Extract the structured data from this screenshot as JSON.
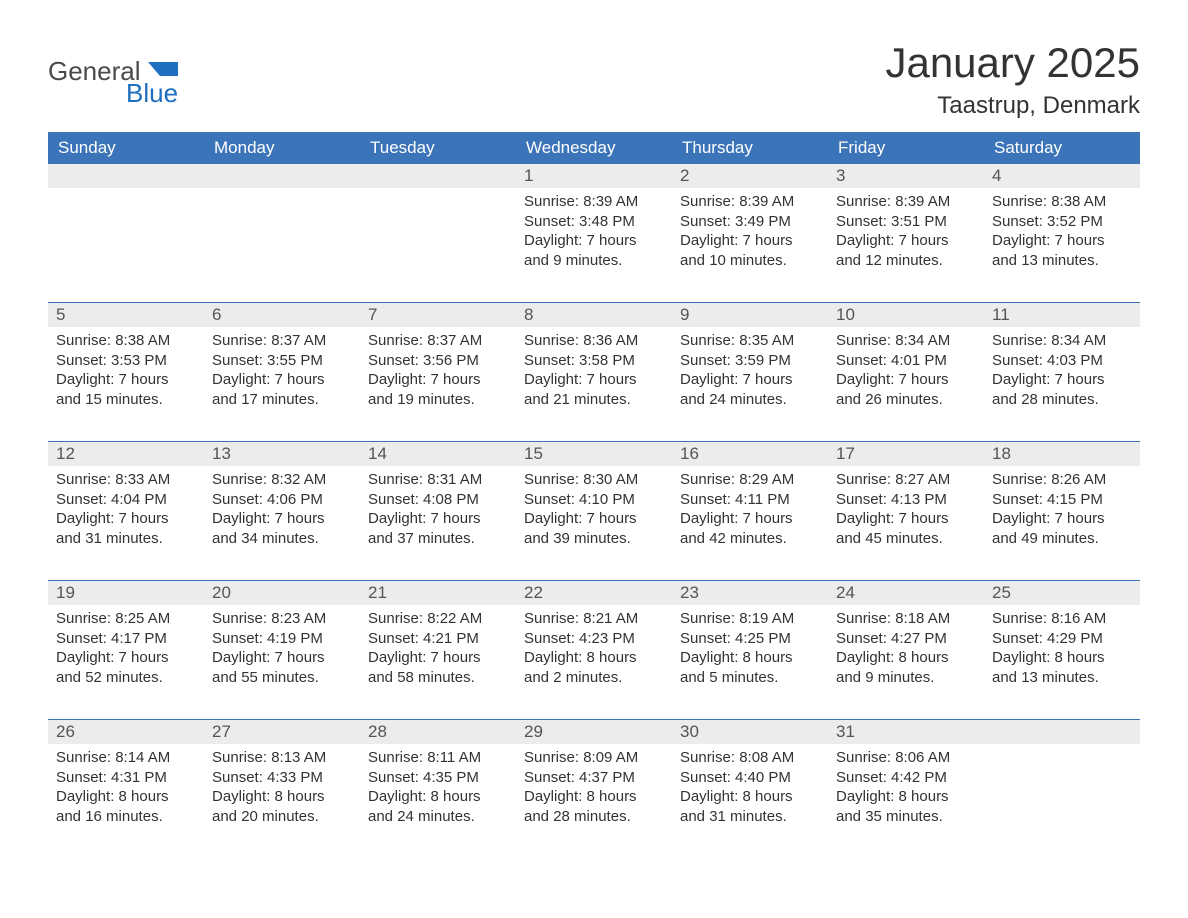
{
  "brand": {
    "word1": "General",
    "word2": "Blue",
    "word1_color": "#4a4a4a",
    "word2_color": "#1e6fbf",
    "flag_color": "#1e6fbf"
  },
  "title": "January 2025",
  "location": "Taastrup, Denmark",
  "colors": {
    "header_bg": "#3b74b9",
    "header_text": "#ffffff",
    "date_bar_bg": "#ececec",
    "date_bar_text": "#555555",
    "body_text": "#333333",
    "week_border": "#3b74b9",
    "page_bg": "#ffffff"
  },
  "day_names": [
    "Sunday",
    "Monday",
    "Tuesday",
    "Wednesday",
    "Thursday",
    "Friday",
    "Saturday"
  ],
  "weeks": [
    [
      null,
      null,
      null,
      {
        "date": "1",
        "sunrise": "Sunrise: 8:39 AM",
        "sunset": "Sunset: 3:48 PM",
        "daylight1": "Daylight: 7 hours",
        "daylight2": "and 9 minutes."
      },
      {
        "date": "2",
        "sunrise": "Sunrise: 8:39 AM",
        "sunset": "Sunset: 3:49 PM",
        "daylight1": "Daylight: 7 hours",
        "daylight2": "and 10 minutes."
      },
      {
        "date": "3",
        "sunrise": "Sunrise: 8:39 AM",
        "sunset": "Sunset: 3:51 PM",
        "daylight1": "Daylight: 7 hours",
        "daylight2": "and 12 minutes."
      },
      {
        "date": "4",
        "sunrise": "Sunrise: 8:38 AM",
        "sunset": "Sunset: 3:52 PM",
        "daylight1": "Daylight: 7 hours",
        "daylight2": "and 13 minutes."
      }
    ],
    [
      {
        "date": "5",
        "sunrise": "Sunrise: 8:38 AM",
        "sunset": "Sunset: 3:53 PM",
        "daylight1": "Daylight: 7 hours",
        "daylight2": "and 15 minutes."
      },
      {
        "date": "6",
        "sunrise": "Sunrise: 8:37 AM",
        "sunset": "Sunset: 3:55 PM",
        "daylight1": "Daylight: 7 hours",
        "daylight2": "and 17 minutes."
      },
      {
        "date": "7",
        "sunrise": "Sunrise: 8:37 AM",
        "sunset": "Sunset: 3:56 PM",
        "daylight1": "Daylight: 7 hours",
        "daylight2": "and 19 minutes."
      },
      {
        "date": "8",
        "sunrise": "Sunrise: 8:36 AM",
        "sunset": "Sunset: 3:58 PM",
        "daylight1": "Daylight: 7 hours",
        "daylight2": "and 21 minutes."
      },
      {
        "date": "9",
        "sunrise": "Sunrise: 8:35 AM",
        "sunset": "Sunset: 3:59 PM",
        "daylight1": "Daylight: 7 hours",
        "daylight2": "and 24 minutes."
      },
      {
        "date": "10",
        "sunrise": "Sunrise: 8:34 AM",
        "sunset": "Sunset: 4:01 PM",
        "daylight1": "Daylight: 7 hours",
        "daylight2": "and 26 minutes."
      },
      {
        "date": "11",
        "sunrise": "Sunrise: 8:34 AM",
        "sunset": "Sunset: 4:03 PM",
        "daylight1": "Daylight: 7 hours",
        "daylight2": "and 28 minutes."
      }
    ],
    [
      {
        "date": "12",
        "sunrise": "Sunrise: 8:33 AM",
        "sunset": "Sunset: 4:04 PM",
        "daylight1": "Daylight: 7 hours",
        "daylight2": "and 31 minutes."
      },
      {
        "date": "13",
        "sunrise": "Sunrise: 8:32 AM",
        "sunset": "Sunset: 4:06 PM",
        "daylight1": "Daylight: 7 hours",
        "daylight2": "and 34 minutes."
      },
      {
        "date": "14",
        "sunrise": "Sunrise: 8:31 AM",
        "sunset": "Sunset: 4:08 PM",
        "daylight1": "Daylight: 7 hours",
        "daylight2": "and 37 minutes."
      },
      {
        "date": "15",
        "sunrise": "Sunrise: 8:30 AM",
        "sunset": "Sunset: 4:10 PM",
        "daylight1": "Daylight: 7 hours",
        "daylight2": "and 39 minutes."
      },
      {
        "date": "16",
        "sunrise": "Sunrise: 8:29 AM",
        "sunset": "Sunset: 4:11 PM",
        "daylight1": "Daylight: 7 hours",
        "daylight2": "and 42 minutes."
      },
      {
        "date": "17",
        "sunrise": "Sunrise: 8:27 AM",
        "sunset": "Sunset: 4:13 PM",
        "daylight1": "Daylight: 7 hours",
        "daylight2": "and 45 minutes."
      },
      {
        "date": "18",
        "sunrise": "Sunrise: 8:26 AM",
        "sunset": "Sunset: 4:15 PM",
        "daylight1": "Daylight: 7 hours",
        "daylight2": "and 49 minutes."
      }
    ],
    [
      {
        "date": "19",
        "sunrise": "Sunrise: 8:25 AM",
        "sunset": "Sunset: 4:17 PM",
        "daylight1": "Daylight: 7 hours",
        "daylight2": "and 52 minutes."
      },
      {
        "date": "20",
        "sunrise": "Sunrise: 8:23 AM",
        "sunset": "Sunset: 4:19 PM",
        "daylight1": "Daylight: 7 hours",
        "daylight2": "and 55 minutes."
      },
      {
        "date": "21",
        "sunrise": "Sunrise: 8:22 AM",
        "sunset": "Sunset: 4:21 PM",
        "daylight1": "Daylight: 7 hours",
        "daylight2": "and 58 minutes."
      },
      {
        "date": "22",
        "sunrise": "Sunrise: 8:21 AM",
        "sunset": "Sunset: 4:23 PM",
        "daylight1": "Daylight: 8 hours",
        "daylight2": "and 2 minutes."
      },
      {
        "date": "23",
        "sunrise": "Sunrise: 8:19 AM",
        "sunset": "Sunset: 4:25 PM",
        "daylight1": "Daylight: 8 hours",
        "daylight2": "and 5 minutes."
      },
      {
        "date": "24",
        "sunrise": "Sunrise: 8:18 AM",
        "sunset": "Sunset: 4:27 PM",
        "daylight1": "Daylight: 8 hours",
        "daylight2": "and 9 minutes."
      },
      {
        "date": "25",
        "sunrise": "Sunrise: 8:16 AM",
        "sunset": "Sunset: 4:29 PM",
        "daylight1": "Daylight: 8 hours",
        "daylight2": "and 13 minutes."
      }
    ],
    [
      {
        "date": "26",
        "sunrise": "Sunrise: 8:14 AM",
        "sunset": "Sunset: 4:31 PM",
        "daylight1": "Daylight: 8 hours",
        "daylight2": "and 16 minutes."
      },
      {
        "date": "27",
        "sunrise": "Sunrise: 8:13 AM",
        "sunset": "Sunset: 4:33 PM",
        "daylight1": "Daylight: 8 hours",
        "daylight2": "and 20 minutes."
      },
      {
        "date": "28",
        "sunrise": "Sunrise: 8:11 AM",
        "sunset": "Sunset: 4:35 PM",
        "daylight1": "Daylight: 8 hours",
        "daylight2": "and 24 minutes."
      },
      {
        "date": "29",
        "sunrise": "Sunrise: 8:09 AM",
        "sunset": "Sunset: 4:37 PM",
        "daylight1": "Daylight: 8 hours",
        "daylight2": "and 28 minutes."
      },
      {
        "date": "30",
        "sunrise": "Sunrise: 8:08 AM",
        "sunset": "Sunset: 4:40 PM",
        "daylight1": "Daylight: 8 hours",
        "daylight2": "and 31 minutes."
      },
      {
        "date": "31",
        "sunrise": "Sunrise: 8:06 AM",
        "sunset": "Sunset: 4:42 PM",
        "daylight1": "Daylight: 8 hours",
        "daylight2": "and 35 minutes."
      },
      null
    ]
  ]
}
